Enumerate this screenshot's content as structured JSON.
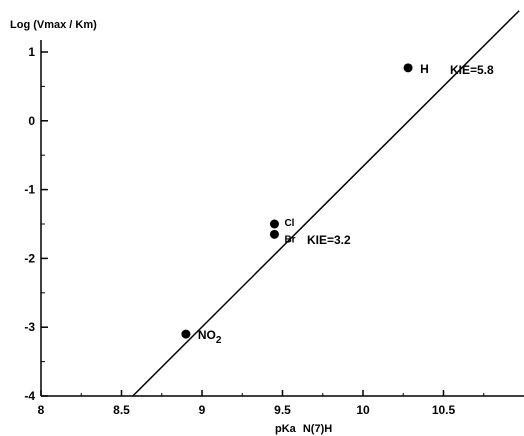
{
  "chart_data": {
    "type": "scatter",
    "ylabel": "Log (Vmax / Km)",
    "xlabel_main": "pKa",
    "xlabel_sub": "N(7)H",
    "xlim": [
      8,
      11
    ],
    "ylim": [
      -4,
      1.2
    ],
    "x_ticks": [
      8,
      8.5,
      9,
      9.5,
      10,
      10.5
    ],
    "x_tick_labels": [
      "8",
      "8.5",
      "9",
      "9.5",
      "10",
      "10.5"
    ],
    "y_ticks": [
      -4,
      -3,
      -2,
      -1,
      0,
      1
    ],
    "y_tick_labels": [
      "-4",
      "-3",
      "-2",
      "-1",
      "0",
      "1"
    ],
    "grid": false,
    "points": [
      {
        "label": "NO",
        "sub": "2",
        "x": 8.9,
        "y": -3.1
      },
      {
        "label": "Cl",
        "sub": "",
        "x": 9.45,
        "y": -1.5
      },
      {
        "label": "Br",
        "sub": "",
        "x": 9.45,
        "y": -1.65
      },
      {
        "label": "H",
        "sub": "",
        "x": 10.28,
        "y": 0.77
      }
    ],
    "fit_line": {
      "x0": 8.57,
      "y0": -4,
      "x1": 10.97,
      "y1": 1.6
    },
    "annotations": [
      {
        "text": "KIE=5.8",
        "near": "H"
      },
      {
        "text": "KIE=3.2",
        "near": "Br"
      }
    ]
  }
}
